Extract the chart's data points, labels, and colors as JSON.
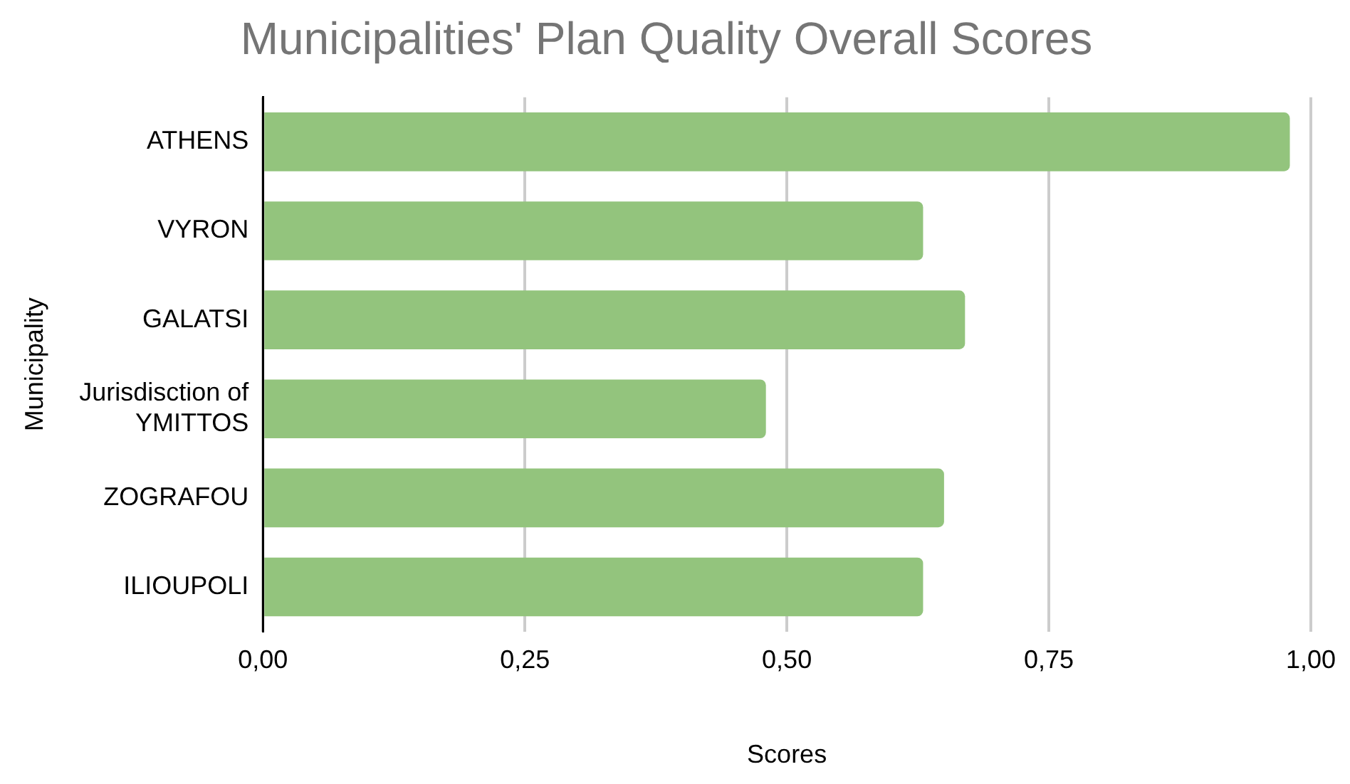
{
  "chart_data": {
    "type": "bar",
    "orientation": "horizontal",
    "title": "Municipalities' Plan Quality Overall Scores",
    "xlabel": "Scores",
    "ylabel": "Municipality",
    "categories": [
      "ATHENS",
      "VYRON",
      "GALATSI",
      "Jurisdisction of YMITTOS",
      "ZOGRAFOU",
      "ILIOUPOLI"
    ],
    "values": [
      0.98,
      0.63,
      0.67,
      0.48,
      0.65,
      0.63
    ],
    "color": "#93c47d",
    "xlim": [
      0,
      1
    ],
    "xticks": [
      {
        "value": 0,
        "label": "0,00"
      },
      {
        "value": 0.25,
        "label": "0,25"
      },
      {
        "value": 0.5,
        "label": "0,50"
      },
      {
        "value": 0.75,
        "label": "0,75"
      },
      {
        "value": 1,
        "label": "1,00"
      }
    ],
    "grid": "x",
    "legend": false
  }
}
